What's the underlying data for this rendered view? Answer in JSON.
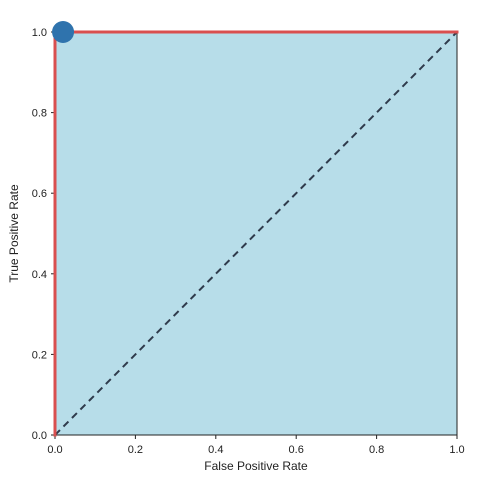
{
  "chart_data": {
    "type": "line",
    "title": "",
    "xlabel": "False Positive Rate",
    "ylabel": "True Positive Rate",
    "xlim": [
      0.0,
      1.0
    ],
    "ylim": [
      0.0,
      1.0
    ],
    "x_ticks": [
      "0.0",
      "0.2",
      "0.4",
      "0.6",
      "0.8",
      "1.0"
    ],
    "y_ticks": [
      "0.0",
      "0.2",
      "0.4",
      "0.6",
      "0.8",
      "1.0"
    ],
    "grid": false,
    "legend": "none",
    "series": [
      {
        "style": "solid",
        "color": "#d94f4f",
        "fill_color": "#b7dde9",
        "x": [
          0.0,
          0.0,
          1.0
        ],
        "y": [
          0.0,
          1.0,
          1.0
        ]
      },
      {
        "style": "dashed",
        "color": "#2f3b4c",
        "x": [
          0.0,
          1.0
        ],
        "y": [
          0.0,
          1.0
        ]
      }
    ],
    "marker": {
      "x": 0.02,
      "y": 1.0,
      "color": "#2f73ad"
    }
  }
}
